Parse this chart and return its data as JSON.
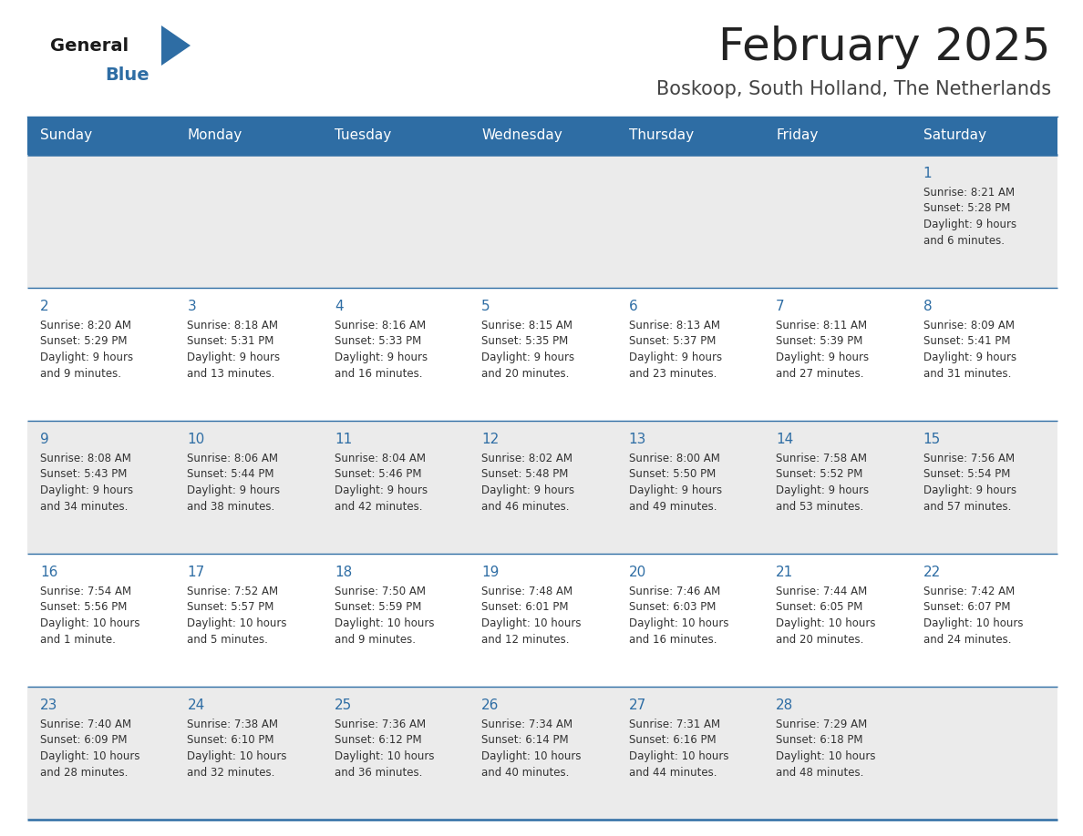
{
  "title": "February 2025",
  "subtitle": "Boskoop, South Holland, The Netherlands",
  "header_bg": "#2E6DA4",
  "header_text_color": "#FFFFFF",
  "row_bg_odd": "#EBEBEB",
  "row_bg_even": "#FFFFFF",
  "separator_color": "#2E6DA4",
  "day_headers": [
    "Sunday",
    "Monday",
    "Tuesday",
    "Wednesday",
    "Thursday",
    "Friday",
    "Saturday"
  ],
  "title_color": "#222222",
  "subtitle_color": "#444444",
  "day_num_color": "#2E6DA4",
  "cell_text_color": "#333333",
  "logo_general_color": "#1a1a1a",
  "logo_blue_color": "#2E6DA4",
  "weeks": [
    [
      {
        "day": null,
        "sunrise": null,
        "sunset": null,
        "daylight": null
      },
      {
        "day": null,
        "sunrise": null,
        "sunset": null,
        "daylight": null
      },
      {
        "day": null,
        "sunrise": null,
        "sunset": null,
        "daylight": null
      },
      {
        "day": null,
        "sunrise": null,
        "sunset": null,
        "daylight": null
      },
      {
        "day": null,
        "sunrise": null,
        "sunset": null,
        "daylight": null
      },
      {
        "day": null,
        "sunrise": null,
        "sunset": null,
        "daylight": null
      },
      {
        "day": 1,
        "sunrise": "8:21 AM",
        "sunset": "5:28 PM",
        "daylight": "9 hours\nand 6 minutes."
      }
    ],
    [
      {
        "day": 2,
        "sunrise": "8:20 AM",
        "sunset": "5:29 PM",
        "daylight": "9 hours\nand 9 minutes."
      },
      {
        "day": 3,
        "sunrise": "8:18 AM",
        "sunset": "5:31 PM",
        "daylight": "9 hours\nand 13 minutes."
      },
      {
        "day": 4,
        "sunrise": "8:16 AM",
        "sunset": "5:33 PM",
        "daylight": "9 hours\nand 16 minutes."
      },
      {
        "day": 5,
        "sunrise": "8:15 AM",
        "sunset": "5:35 PM",
        "daylight": "9 hours\nand 20 minutes."
      },
      {
        "day": 6,
        "sunrise": "8:13 AM",
        "sunset": "5:37 PM",
        "daylight": "9 hours\nand 23 minutes."
      },
      {
        "day": 7,
        "sunrise": "8:11 AM",
        "sunset": "5:39 PM",
        "daylight": "9 hours\nand 27 minutes."
      },
      {
        "day": 8,
        "sunrise": "8:09 AM",
        "sunset": "5:41 PM",
        "daylight": "9 hours\nand 31 minutes."
      }
    ],
    [
      {
        "day": 9,
        "sunrise": "8:08 AM",
        "sunset": "5:43 PM",
        "daylight": "9 hours\nand 34 minutes."
      },
      {
        "day": 10,
        "sunrise": "8:06 AM",
        "sunset": "5:44 PM",
        "daylight": "9 hours\nand 38 minutes."
      },
      {
        "day": 11,
        "sunrise": "8:04 AM",
        "sunset": "5:46 PM",
        "daylight": "9 hours\nand 42 minutes."
      },
      {
        "day": 12,
        "sunrise": "8:02 AM",
        "sunset": "5:48 PM",
        "daylight": "9 hours\nand 46 minutes."
      },
      {
        "day": 13,
        "sunrise": "8:00 AM",
        "sunset": "5:50 PM",
        "daylight": "9 hours\nand 49 minutes."
      },
      {
        "day": 14,
        "sunrise": "7:58 AM",
        "sunset": "5:52 PM",
        "daylight": "9 hours\nand 53 minutes."
      },
      {
        "day": 15,
        "sunrise": "7:56 AM",
        "sunset": "5:54 PM",
        "daylight": "9 hours\nand 57 minutes."
      }
    ],
    [
      {
        "day": 16,
        "sunrise": "7:54 AM",
        "sunset": "5:56 PM",
        "daylight": "10 hours\nand 1 minute."
      },
      {
        "day": 17,
        "sunrise": "7:52 AM",
        "sunset": "5:57 PM",
        "daylight": "10 hours\nand 5 minutes."
      },
      {
        "day": 18,
        "sunrise": "7:50 AM",
        "sunset": "5:59 PM",
        "daylight": "10 hours\nand 9 minutes."
      },
      {
        "day": 19,
        "sunrise": "7:48 AM",
        "sunset": "6:01 PM",
        "daylight": "10 hours\nand 12 minutes."
      },
      {
        "day": 20,
        "sunrise": "7:46 AM",
        "sunset": "6:03 PM",
        "daylight": "10 hours\nand 16 minutes."
      },
      {
        "day": 21,
        "sunrise": "7:44 AM",
        "sunset": "6:05 PM",
        "daylight": "10 hours\nand 20 minutes."
      },
      {
        "day": 22,
        "sunrise": "7:42 AM",
        "sunset": "6:07 PM",
        "daylight": "10 hours\nand 24 minutes."
      }
    ],
    [
      {
        "day": 23,
        "sunrise": "7:40 AM",
        "sunset": "6:09 PM",
        "daylight": "10 hours\nand 28 minutes."
      },
      {
        "day": 24,
        "sunrise": "7:38 AM",
        "sunset": "6:10 PM",
        "daylight": "10 hours\nand 32 minutes."
      },
      {
        "day": 25,
        "sunrise": "7:36 AM",
        "sunset": "6:12 PM",
        "daylight": "10 hours\nand 36 minutes."
      },
      {
        "day": 26,
        "sunrise": "7:34 AM",
        "sunset": "6:14 PM",
        "daylight": "10 hours\nand 40 minutes."
      },
      {
        "day": 27,
        "sunrise": "7:31 AM",
        "sunset": "6:16 PM",
        "daylight": "10 hours\nand 44 minutes."
      },
      {
        "day": 28,
        "sunrise": "7:29 AM",
        "sunset": "6:18 PM",
        "daylight": "10 hours\nand 48 minutes."
      },
      {
        "day": null,
        "sunrise": null,
        "sunset": null,
        "daylight": null
      }
    ]
  ]
}
